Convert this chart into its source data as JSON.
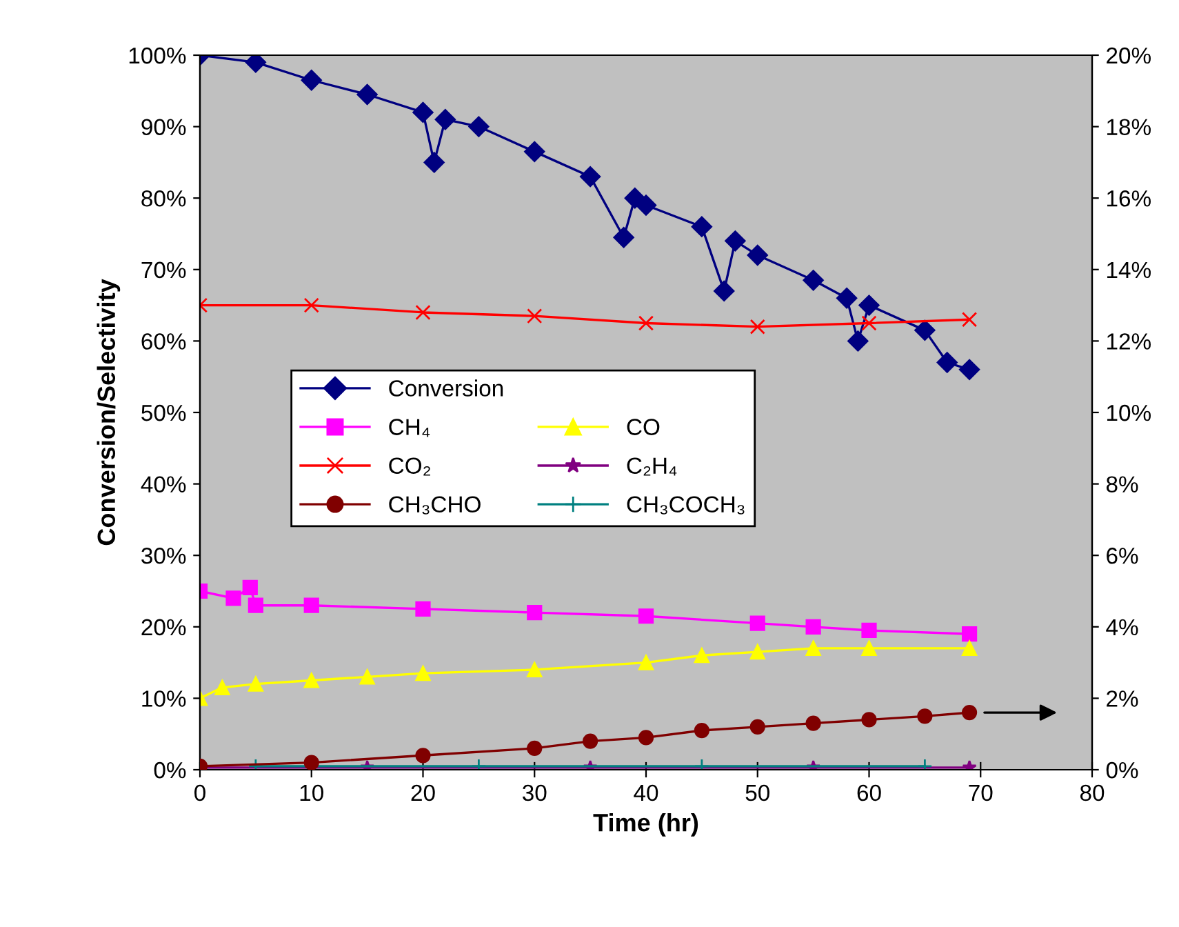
{
  "chart_data": {
    "type": "line",
    "xlabel": "Time (hr)",
    "ylabel": "Conversion/Selectivity",
    "legend": "center left",
    "grid": false,
    "xlim": [
      0,
      80
    ],
    "xticks": [
      0,
      10,
      20,
      30,
      40,
      50,
      60,
      70,
      80
    ],
    "ylim": [
      0,
      100
    ],
    "yticks": [
      {
        "value": 0,
        "label": "0%"
      },
      {
        "value": 10,
        "label": "10%"
      },
      {
        "value": 20,
        "label": "20%"
      },
      {
        "value": 30,
        "label": "30%"
      },
      {
        "value": 40,
        "label": "40%"
      },
      {
        "value": 50,
        "label": "50%"
      },
      {
        "value": 60,
        "label": "60%"
      },
      {
        "value": 70,
        "label": "70%"
      },
      {
        "value": 80,
        "label": "80%"
      },
      {
        "value": 90,
        "label": "90%"
      },
      {
        "value": 100,
        "label": "100%"
      }
    ],
    "y2lim": [
      0,
      20
    ],
    "y2ticks": [
      {
        "value": 0,
        "label": "0%"
      },
      {
        "value": 2,
        "label": "2%"
      },
      {
        "value": 4,
        "label": "4%"
      },
      {
        "value": 6,
        "label": "6%"
      },
      {
        "value": 8,
        "label": "8%"
      },
      {
        "value": 10,
        "label": "10%"
      },
      {
        "value": 12,
        "label": "12%"
      },
      {
        "value": 14,
        "label": "14%"
      },
      {
        "value": 16,
        "label": "16%"
      },
      {
        "value": 18,
        "label": "18%"
      },
      {
        "value": 20,
        "label": "20%"
      }
    ],
    "series": [
      {
        "name": "Conversion",
        "color": "#000080",
        "marker": "diamond",
        "x": [
          0,
          5,
          10,
          15,
          20,
          21,
          22,
          25,
          30,
          35,
          38,
          39,
          40,
          45,
          47,
          48,
          50,
          55,
          58,
          59,
          60,
          65,
          67,
          69
        ],
        "values": [
          100,
          99,
          96.5,
          94.5,
          92,
          85,
          91,
          90,
          86.5,
          83,
          74.5,
          80,
          79,
          76,
          67,
          74,
          72,
          68.5,
          66,
          60,
          65,
          61.5,
          57,
          56
        ]
      },
      {
        "name": "CH₄",
        "color": "#ff00ff",
        "marker": "square",
        "x": [
          0,
          3,
          4.5,
          5,
          10,
          20,
          30,
          40,
          50,
          55,
          60,
          69
        ],
        "values": [
          25,
          24,
          25.5,
          23,
          23,
          22.5,
          22,
          21.5,
          20.5,
          20,
          19.5,
          19
        ]
      },
      {
        "name": "CO₂",
        "color": "#ff0000",
        "marker": "cross",
        "x": [
          0,
          10,
          20,
          30,
          40,
          50,
          60,
          69
        ],
        "values": [
          65,
          65,
          64,
          63.5,
          62.5,
          62,
          62.5,
          63
        ]
      },
      {
        "name": "CH₃CHO",
        "color": "#800000",
        "marker": "circle",
        "axis": "y2",
        "x": [
          0,
          10,
          20,
          30,
          35,
          40,
          45,
          50,
          55,
          60,
          65,
          69
        ],
        "values": [
          0.1,
          0.2,
          0.4,
          0.6,
          0.8,
          0.9,
          1.1,
          1.2,
          1.3,
          1.4,
          1.5,
          1.6
        ]
      },
      {
        "name": "CO",
        "color": "#ffff00",
        "marker": "triangle",
        "x": [
          0,
          2,
          5,
          10,
          15,
          20,
          30,
          40,
          45,
          50,
          55,
          60,
          69
        ],
        "values": [
          10,
          11.5,
          12,
          12.5,
          13,
          13.5,
          14,
          15,
          16,
          16.5,
          17,
          17,
          17
        ]
      },
      {
        "name": "C₂H₄",
        "color": "#800080",
        "marker": "star",
        "x": [
          0,
          15,
          35,
          55,
          69
        ],
        "values": [
          0.3,
          0.3,
          0.3,
          0.3,
          0.3
        ]
      },
      {
        "name": "CH₃COCH₃",
        "color": "#008080",
        "marker": "cross",
        "x": [
          5,
          25,
          45,
          65
        ],
        "values": [
          0.5,
          0.5,
          0.5,
          0.5
        ]
      }
    ]
  }
}
